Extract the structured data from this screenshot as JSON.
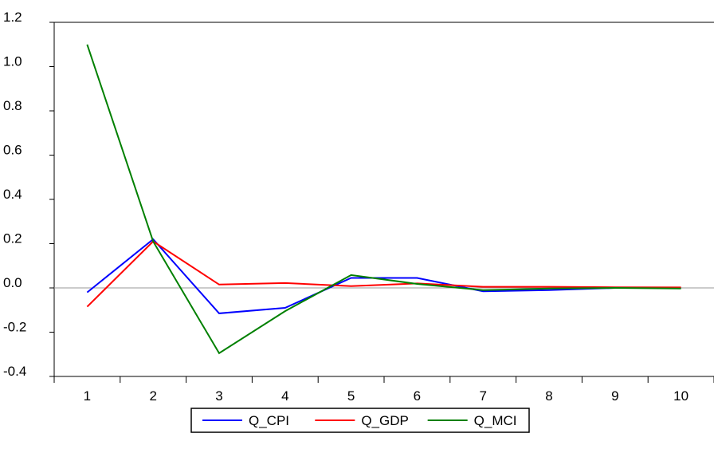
{
  "chart_data": {
    "type": "line",
    "title": "",
    "xlabel": "",
    "ylabel": "",
    "x": [
      1,
      2,
      3,
      4,
      5,
      6,
      7,
      8,
      9,
      10
    ],
    "xlim": [
      0.5,
      10.5
    ],
    "ylim": [
      -0.4,
      1.2
    ],
    "y_ticks": [
      "1.2",
      "1.0",
      "0.8",
      "0.6",
      "0.4",
      "0.2",
      "0.0",
      "-0.2",
      "-0.4"
    ],
    "x_ticks": [
      "1",
      "2",
      "3",
      "4",
      "5",
      "6",
      "7",
      "8",
      "9",
      "10"
    ],
    "grid": false,
    "zero_line": true,
    "legend_position": "bottom-center",
    "series": [
      {
        "name": "Q_CPI",
        "color": "#0000ff",
        "values": [
          -0.02,
          0.22,
          -0.115,
          -0.09,
          0.045,
          0.045,
          -0.015,
          -0.01,
          0.0,
          0.0
        ]
      },
      {
        "name": "Q_GDP",
        "color": "#ff0000",
        "values": [
          -0.085,
          0.21,
          0.015,
          0.022,
          0.008,
          0.02,
          0.005,
          0.005,
          0.003,
          0.002
        ]
      },
      {
        "name": "Q_MCI",
        "color": "#008000",
        "values": [
          1.1,
          0.21,
          -0.295,
          -0.105,
          0.058,
          0.018,
          -0.01,
          -0.003,
          0.0,
          -0.003
        ]
      }
    ]
  }
}
